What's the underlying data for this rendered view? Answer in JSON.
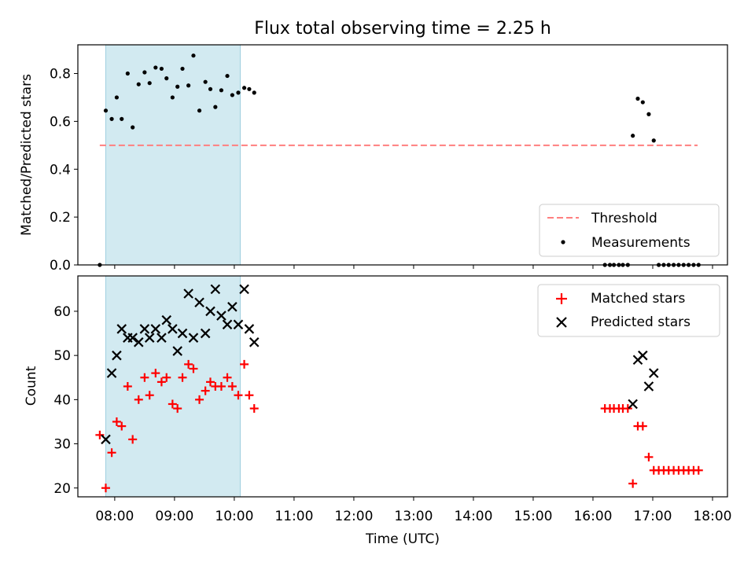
{
  "chart_data": [
    {
      "type": "scatter",
      "title": "Flux total observing time = 2.25 h",
      "ylabel": "Matched/Predicted stars",
      "xlabel": "",
      "xlim": [
        "07:23",
        "18:15"
      ],
      "ylim": [
        0,
        0.92
      ],
      "grid": false,
      "yticks": [
        "0.0",
        "0.2",
        "0.4",
        "0.6",
        "0.8"
      ],
      "highlight_span": {
        "from": "07:51",
        "to": "10:06",
        "color": "#add8e6"
      },
      "threshold": {
        "name": "Threshold",
        "y": 0.5,
        "from": "07:45",
        "to": "17:45",
        "color": "#ff7f7f"
      },
      "legend": {
        "position": "lower-right",
        "entries": [
          "Threshold",
          "Measurements"
        ]
      },
      "series": [
        {
          "name": "Measurements",
          "color": "#000000",
          "points": [
            [
              "07:45",
              0.0
            ],
            [
              "07:51",
              0.645
            ],
            [
              "07:57",
              0.61
            ],
            [
              "08:02",
              0.7
            ],
            [
              "08:07",
              0.61
            ],
            [
              "08:13",
              0.8
            ],
            [
              "08:18",
              0.575
            ],
            [
              "08:24",
              0.755
            ],
            [
              "08:30",
              0.805
            ],
            [
              "08:35",
              0.76
            ],
            [
              "08:41",
              0.825
            ],
            [
              "08:47",
              0.82
            ],
            [
              "08:52",
              0.78
            ],
            [
              "08:58",
              0.7
            ],
            [
              "09:03",
              0.745
            ],
            [
              "09:08",
              0.82
            ],
            [
              "09:14",
              0.75
            ],
            [
              "09:19",
              0.875
            ],
            [
              "09:25",
              0.645
            ],
            [
              "09:31",
              0.765
            ],
            [
              "09:36",
              0.735
            ],
            [
              "09:41",
              0.66
            ],
            [
              "09:47",
              0.73
            ],
            [
              "09:53",
              0.79
            ],
            [
              "09:58",
              0.71
            ],
            [
              "10:04",
              0.72
            ],
            [
              "10:10",
              0.74
            ],
            [
              "10:15",
              0.735
            ],
            [
              "10:20",
              0.72
            ],
            [
              "16:12",
              0.0
            ],
            [
              "16:17",
              0.0
            ],
            [
              "16:21",
              0.0
            ],
            [
              "16:26",
              0.0
            ],
            [
              "16:30",
              0.0
            ],
            [
              "16:35",
              0.0
            ],
            [
              "16:40",
              0.54
            ],
            [
              "16:45",
              0.695
            ],
            [
              "16:50",
              0.68
            ],
            [
              "16:56",
              0.63
            ],
            [
              "17:01",
              0.52
            ],
            [
              "17:06",
              0.0
            ],
            [
              "17:11",
              0.0
            ],
            [
              "17:16",
              0.0
            ],
            [
              "17:21",
              0.0
            ],
            [
              "17:26",
              0.0
            ],
            [
              "17:31",
              0.0
            ],
            [
              "17:36",
              0.0
            ],
            [
              "17:41",
              0.0
            ],
            [
              "17:46",
              0.0
            ]
          ]
        }
      ]
    },
    {
      "type": "scatter",
      "title": "",
      "ylabel": "Count",
      "xlabel": "Time (UTC)",
      "xlim": [
        "07:23",
        "18:15"
      ],
      "ylim": [
        18,
        68
      ],
      "grid": false,
      "yticks": [
        "20",
        "30",
        "40",
        "50",
        "60"
      ],
      "xticks": [
        "08:00",
        "09:00",
        "10:00",
        "11:00",
        "12:00",
        "13:00",
        "14:00",
        "15:00",
        "16:00",
        "17:00",
        "18:00"
      ],
      "highlight_span": {
        "from": "07:51",
        "to": "10:06",
        "color": "#add8e6"
      },
      "legend": {
        "position": "top-right",
        "entries": [
          "Matched stars",
          "Predicted stars"
        ]
      },
      "series": [
        {
          "name": "Matched stars",
          "color": "#ff0000",
          "marker": "plus",
          "points": [
            [
              "07:45",
              32
            ],
            [
              "07:51",
              20
            ],
            [
              "07:57",
              28
            ],
            [
              "08:02",
              35
            ],
            [
              "08:07",
              34
            ],
            [
              "08:13",
              43
            ],
            [
              "08:18",
              31
            ],
            [
              "08:24",
              40
            ],
            [
              "08:30",
              45
            ],
            [
              "08:35",
              41
            ],
            [
              "08:41",
              46
            ],
            [
              "08:47",
              44
            ],
            [
              "08:52",
              45
            ],
            [
              "08:58",
              39
            ],
            [
              "09:03",
              38
            ],
            [
              "09:08",
              45
            ],
            [
              "09:14",
              48
            ],
            [
              "09:19",
              47
            ],
            [
              "09:25",
              40
            ],
            [
              "09:31",
              42
            ],
            [
              "09:36",
              44
            ],
            [
              "09:41",
              43
            ],
            [
              "09:47",
              43
            ],
            [
              "09:53",
              45
            ],
            [
              "09:58",
              43
            ],
            [
              "10:04",
              41
            ],
            [
              "10:10",
              48
            ],
            [
              "10:15",
              41
            ],
            [
              "10:20",
              38
            ],
            [
              "16:12",
              38
            ],
            [
              "16:17",
              38
            ],
            [
              "16:21",
              38
            ],
            [
              "16:26",
              38
            ],
            [
              "16:30",
              38
            ],
            [
              "16:35",
              38
            ],
            [
              "16:40",
              21
            ],
            [
              "16:45",
              34
            ],
            [
              "16:50",
              34
            ],
            [
              "16:56",
              27
            ],
            [
              "17:01",
              24
            ],
            [
              "17:06",
              24
            ],
            [
              "17:11",
              24
            ],
            [
              "17:16",
              24
            ],
            [
              "17:21",
              24
            ],
            [
              "17:26",
              24
            ],
            [
              "17:31",
              24
            ],
            [
              "17:36",
              24
            ],
            [
              "17:41",
              24
            ],
            [
              "17:46",
              24
            ]
          ]
        },
        {
          "name": "Predicted stars",
          "color": "#000000",
          "marker": "x",
          "points": [
            [
              "07:51",
              31
            ],
            [
              "07:57",
              46
            ],
            [
              "08:02",
              50
            ],
            [
              "08:07",
              56
            ],
            [
              "08:13",
              54
            ],
            [
              "08:18",
              54
            ],
            [
              "08:24",
              53
            ],
            [
              "08:30",
              56
            ],
            [
              "08:35",
              54
            ],
            [
              "08:41",
              56
            ],
            [
              "08:47",
              54
            ],
            [
              "08:52",
              58
            ],
            [
              "08:58",
              56
            ],
            [
              "09:03",
              51
            ],
            [
              "09:08",
              55
            ],
            [
              "09:14",
              64
            ],
            [
              "09:19",
              54
            ],
            [
              "09:25",
              62
            ],
            [
              "09:31",
              55
            ],
            [
              "09:36",
              60
            ],
            [
              "09:41",
              65
            ],
            [
              "09:47",
              59
            ],
            [
              "09:53",
              57
            ],
            [
              "09:58",
              61
            ],
            [
              "10:04",
              57
            ],
            [
              "10:10",
              65
            ],
            [
              "10:15",
              56
            ],
            [
              "10:20",
              53
            ],
            [
              "16:40",
              39
            ],
            [
              "16:45",
              49
            ],
            [
              "16:50",
              50
            ],
            [
              "16:56",
              43
            ],
            [
              "17:01",
              46
            ]
          ]
        }
      ]
    }
  ]
}
